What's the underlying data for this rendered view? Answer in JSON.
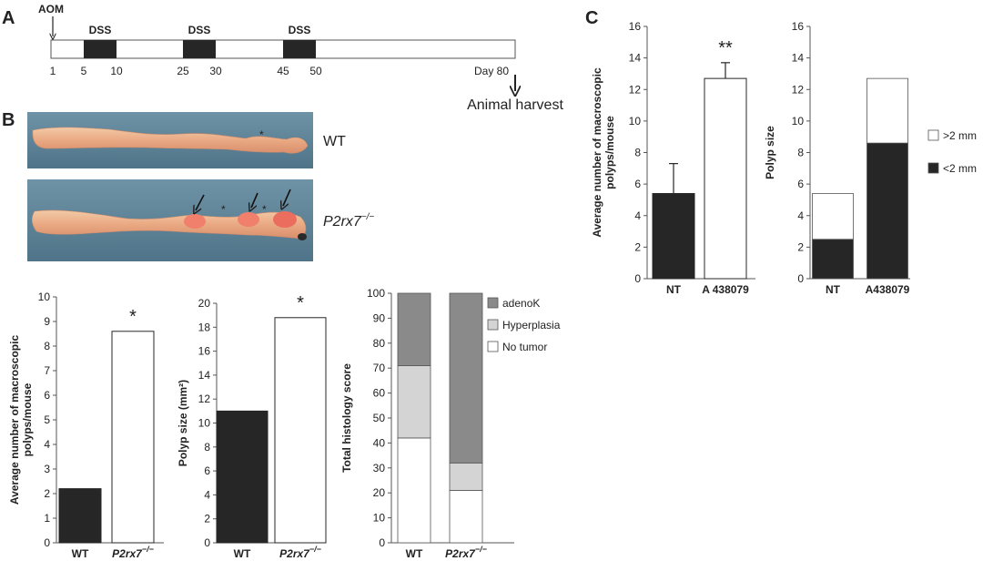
{
  "panel_labels": {
    "a": "A",
    "b": "B",
    "c": "C"
  },
  "timeline": {
    "aom_label": "AOM",
    "dss_label": "DSS",
    "ticks": [
      "1",
      "5",
      "10",
      "25",
      "30",
      "45",
      "50"
    ],
    "end_label": "Day 80",
    "harvest_label": "Animal harvest"
  },
  "colon_images": {
    "wt_label": "WT",
    "ko_label": "P2rx7",
    "ko_sup": "−/−",
    "marker": "*"
  },
  "chart_data": [
    {
      "id": "b1",
      "type": "bar",
      "categories": [
        "WT",
        "P2rx7"
      ],
      "category_sup": [
        "",
        "−/−"
      ],
      "values": [
        2.2,
        8.6
      ],
      "fills": [
        "#262626",
        "#ffffff"
      ],
      "ylabel": [
        "Average number of macroscopic",
        "polyps/mouse"
      ],
      "ylim": [
        0,
        10
      ],
      "yticks": [
        "0",
        "1",
        "2",
        "3",
        "4",
        "5",
        "6",
        "7",
        "8",
        "9",
        "10"
      ],
      "significance": [
        "",
        "*"
      ]
    },
    {
      "id": "b2",
      "type": "bar",
      "categories": [
        "WT",
        "P2rx7"
      ],
      "category_sup": [
        "",
        "−/−"
      ],
      "values": [
        11,
        18.8
      ],
      "fills": [
        "#262626",
        "#ffffff"
      ],
      "ylabel": [
        "Polyp size (mm²)"
      ],
      "ylim": [
        0,
        20
      ],
      "yticks": [
        "0",
        "2",
        "4",
        "6",
        "8",
        "10",
        "12",
        "14",
        "16",
        "18",
        "20"
      ],
      "significance": [
        "",
        "*"
      ]
    },
    {
      "id": "b3",
      "type": "bar",
      "stacked": true,
      "categories": [
        "WT",
        "P2rx7"
      ],
      "category_sup": [
        "",
        "−/−"
      ],
      "series": [
        {
          "name": "No tumor",
          "values": [
            42,
            21
          ],
          "color": "#ffffff"
        },
        {
          "name": "Hyperplasia",
          "values": [
            29,
            11
          ],
          "color": "#d4d4d4"
        },
        {
          "name": "adenoK",
          "values": [
            29,
            68
          ],
          "color": "#8a8a8a"
        }
      ],
      "legend_order": [
        "adenoK",
        "Hyperplasia",
        "No tumor"
      ],
      "ylabel": [
        "Total histology score"
      ],
      "ylim": [
        0,
        100
      ],
      "yticks": [
        "0",
        "10",
        "20",
        "30",
        "40",
        "50",
        "60",
        "70",
        "80",
        "90",
        "100"
      ]
    },
    {
      "id": "c1",
      "type": "bar",
      "categories": [
        "NT",
        "A 438079"
      ],
      "category_sup": [
        "",
        ""
      ],
      "values": [
        5.4,
        12.7
      ],
      "errors": [
        1.9,
        1.0
      ],
      "fills": [
        "#262626",
        "#ffffff"
      ],
      "ylabel": [
        "Average number of macroscopic",
        "polyps/mouse"
      ],
      "ylim": [
        0,
        16
      ],
      "yticks": [
        "0",
        "2",
        "4",
        "6",
        "8",
        "10",
        "12",
        "14",
        "16"
      ],
      "significance": [
        "",
        "**"
      ]
    },
    {
      "id": "c2",
      "type": "bar",
      "stacked": true,
      "categories": [
        "NT",
        "A438079"
      ],
      "category_sup": [
        "",
        ""
      ],
      "series": [
        {
          "name": "<2 mm",
          "values": [
            2.5,
            8.6
          ],
          "color": "#262626"
        },
        {
          "name": ">2 mm",
          "values": [
            2.9,
            4.1
          ],
          "color": "#ffffff"
        }
      ],
      "legend_order": [
        ">2 mm",
        "<2 mm"
      ],
      "ylabel": [
        "Polyp size"
      ],
      "ylim": [
        0,
        16
      ],
      "yticks": [
        "0",
        "2",
        "4",
        "6",
        "8",
        "10",
        "12",
        "14",
        "16"
      ]
    }
  ]
}
